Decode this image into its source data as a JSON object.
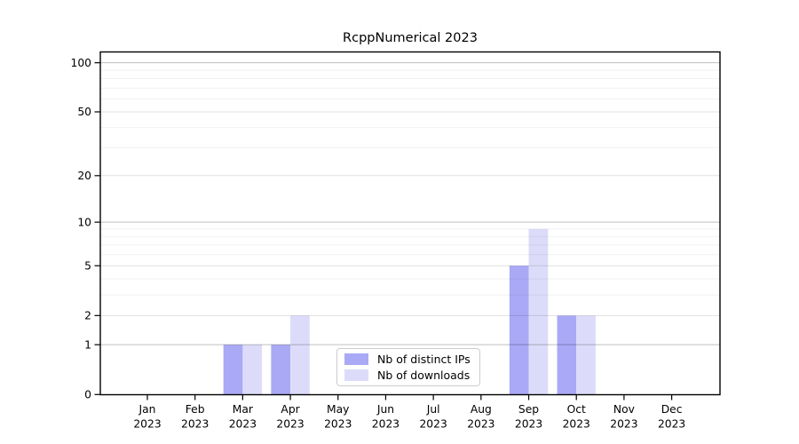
{
  "figure": {
    "title": "RcppNumerical 2023"
  },
  "chart_data": {
    "type": "bar",
    "title": "RcppNumerical 2023",
    "categories": [
      "Jan",
      "Feb",
      "Mar",
      "Apr",
      "May",
      "Jun",
      "Jul",
      "Aug",
      "Sep",
      "Oct",
      "Nov",
      "Dec"
    ],
    "x_sublabel": "2023",
    "series": [
      {
        "name": "Nb of distinct IPs",
        "color": "#a9a9f6",
        "values": [
          0,
          0,
          1,
          1,
          0,
          0,
          0,
          0,
          5,
          2,
          0,
          0
        ]
      },
      {
        "name": "Nb of downloads",
        "color": "#dcdcfa",
        "values": [
          0,
          0,
          1,
          2,
          0,
          0,
          0,
          0,
          9,
          2,
          0,
          0
        ]
      }
    ],
    "yscale": "log1p",
    "ylim": [
      0,
      116
    ],
    "y_ticks": [
      0,
      1,
      2,
      5,
      10,
      20,
      50,
      100
    ],
    "y_decade_gridlines": [
      1,
      10,
      100
    ],
    "y_minor_gridlines": [
      3,
      4,
      6,
      7,
      8,
      9,
      30,
      40,
      60,
      70,
      80,
      90
    ],
    "grid": true,
    "legend_position": "lower center",
    "xlabel": "",
    "ylabel": ""
  }
}
